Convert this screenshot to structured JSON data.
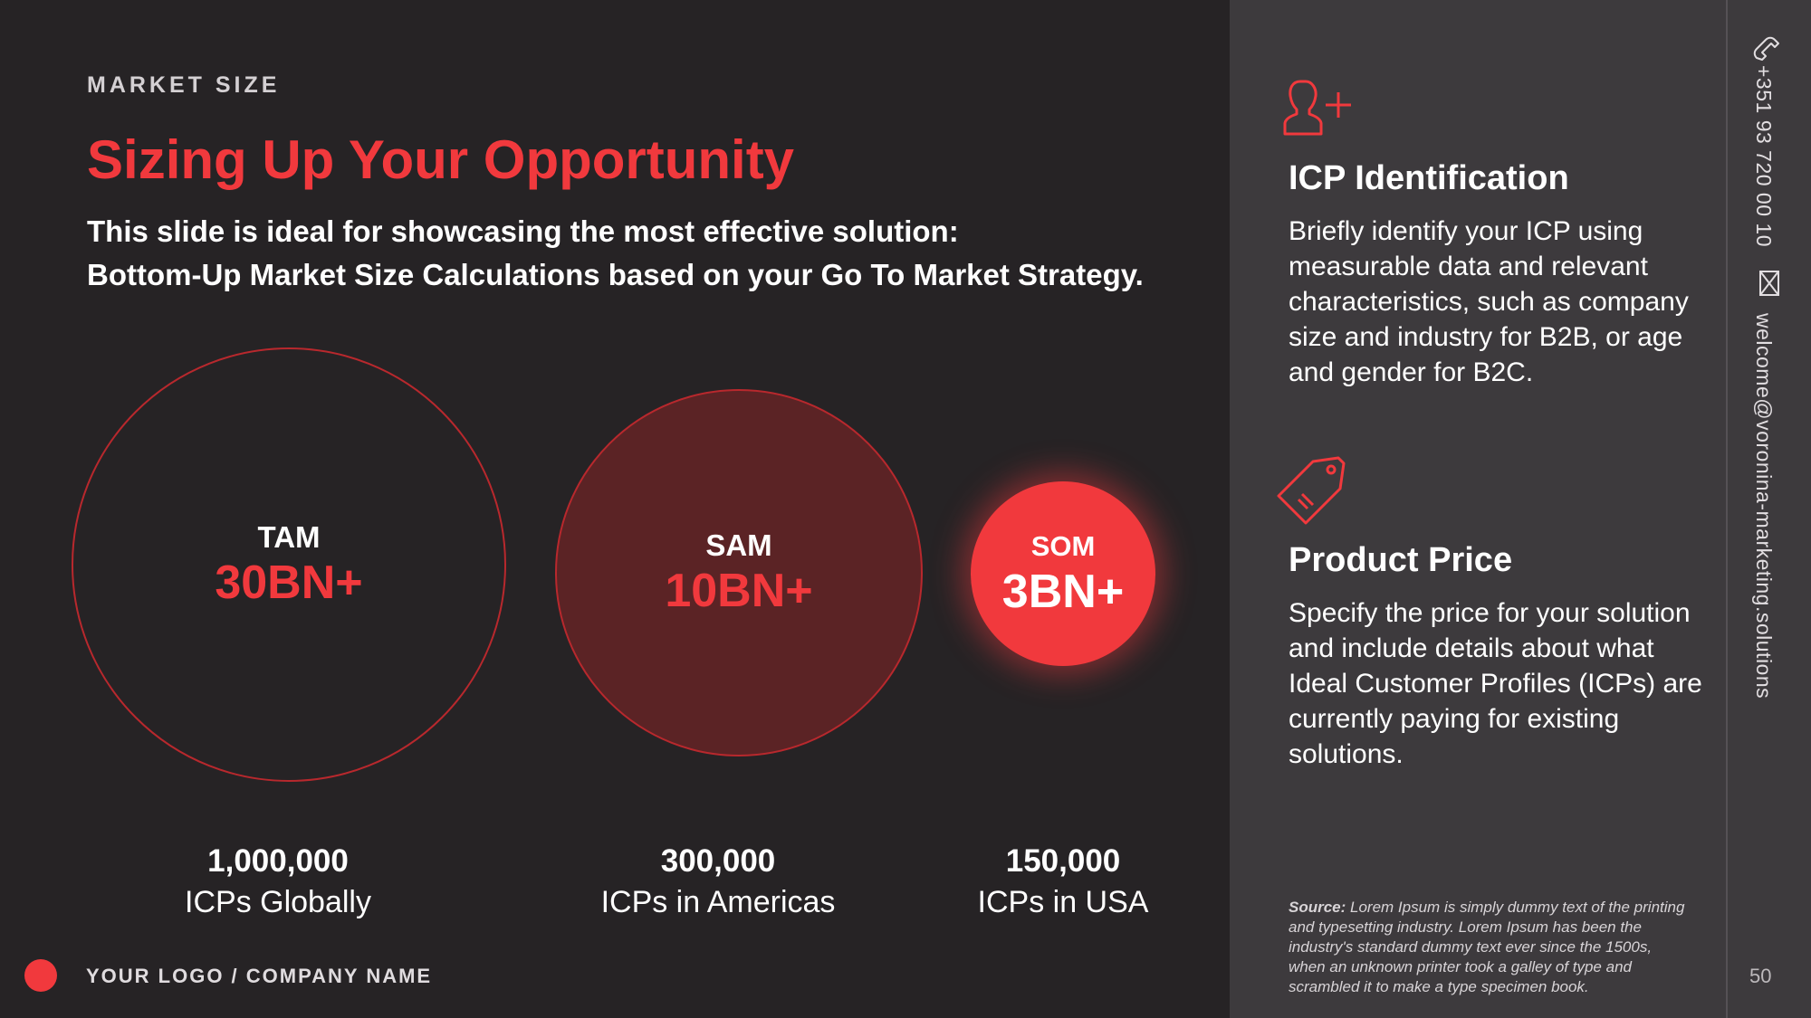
{
  "header": {
    "eyebrow": "MARKET SIZE",
    "title": "Sizing Up Your Opportunity",
    "subtitle_line1": "This slide is ideal for showcasing the most effective solution:",
    "subtitle_line2": "Bottom-Up Market Size Calculations based on your Go To Market Strategy."
  },
  "circles": {
    "tam": {
      "label": "TAM",
      "value": "30BN+"
    },
    "sam": {
      "label": "SAM",
      "value": "10BN+"
    },
    "som": {
      "label": "SOM",
      "value": "3BN+"
    }
  },
  "stats": [
    {
      "number": "1,000,000",
      "caption": "ICPs Globally"
    },
    {
      "number": "300,000",
      "caption": "ICPs in Americas"
    },
    {
      "number": "150,000",
      "caption": "ICPs in USA"
    }
  ],
  "footer": {
    "logo_text": "YOUR LOGO / COMPANY NAME"
  },
  "sidebar": {
    "icp": {
      "icon": "add-user-icon",
      "heading": "ICP Identification",
      "body": "Briefly identify your ICP using measurable data and relevant characteristics, such as company size and industry for B2B, or age and gender for B2C."
    },
    "price": {
      "icon": "price-tag-icon",
      "heading": "Product Price",
      "body": "Specify the price for your solution and include details about what Ideal Customer Profiles (ICPs) are currently paying for existing solutions."
    },
    "source_label": "Source:",
    "source_text": " Lorem Ipsum is simply dummy text of the printing and typesetting industry. Lorem Ipsum has been the industry's standard dummy text ever since the 1500s, when an unknown printer took a galley of type and scrambled it to make a type specimen book."
  },
  "contact": {
    "phone": "+351 93 720 00 10",
    "email": "welcome@voronina-marketing.solutions"
  },
  "page_number": "50",
  "colors": {
    "accent": "#f1393d",
    "background": "#262325",
    "panel": "#3d3a3d"
  }
}
